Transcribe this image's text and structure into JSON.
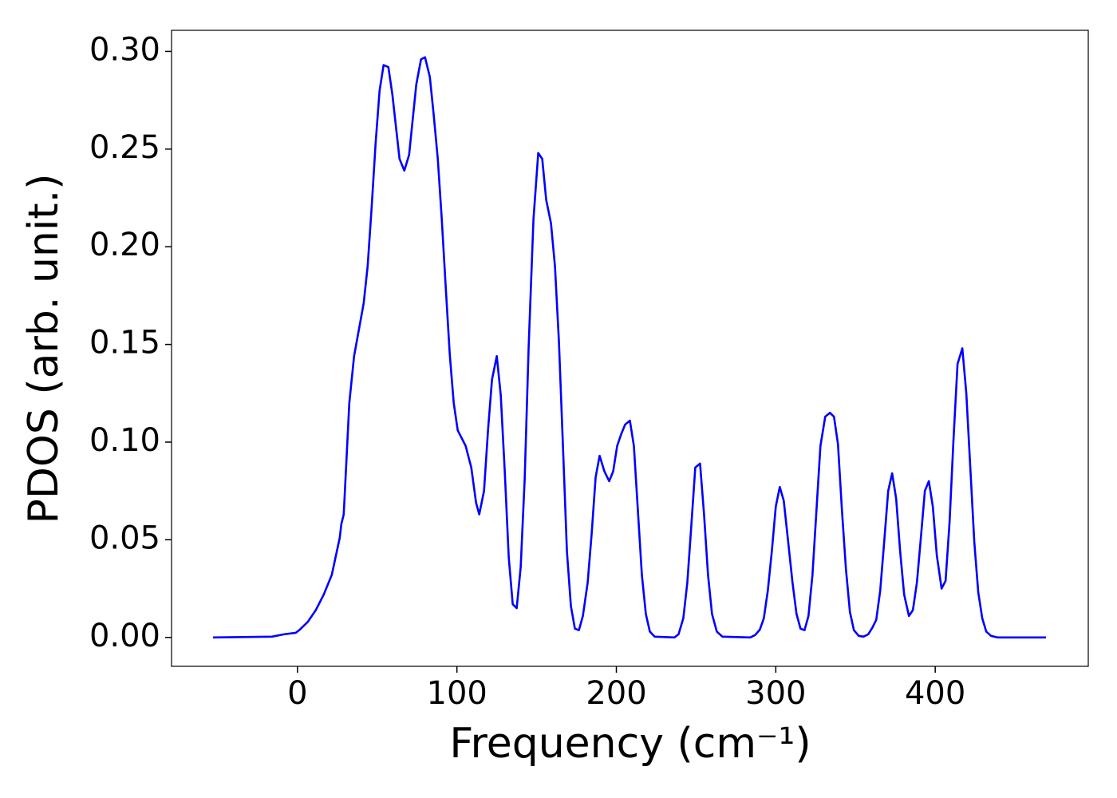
{
  "chart_data": {
    "type": "line",
    "xlabel": "Frequency (cm⁻¹)",
    "ylabel": "PDOS (arb. unit.)",
    "x": [
      -53,
      -16,
      -8.5,
      -1,
      1.5,
      6.5,
      11.5,
      16.5,
      21.5,
      26.5,
      27.5,
      29,
      32.5,
      35.5,
      41.5,
      44,
      46.5,
      49,
      51.5,
      54,
      57,
      59.5,
      64,
      67,
      70,
      74.5,
      77.5,
      80,
      83,
      85.5,
      88,
      90.5,
      93,
      95.5,
      98,
      100.5,
      105.5,
      109,
      112,
      114,
      117,
      119.5,
      122,
      125,
      127.5,
      130,
      132.5,
      135,
      137.5,
      140,
      142.5,
      145,
      148,
      151,
      153.5,
      156,
      159,
      161.5,
      164,
      166.5,
      169,
      171.5,
      174,
      176.5,
      179,
      182,
      184.5,
      187,
      189.5,
      192.5,
      195.5,
      198,
      200.5,
      203,
      205.5,
      208.5,
      211,
      213.5,
      216,
      218.5,
      221,
      224,
      236.5,
      239,
      242,
      244.5,
      247,
      249.5,
      252.5,
      255,
      257.5,
      260,
      263,
      266.5,
      284,
      287,
      290,
      292.5,
      295,
      297.5,
      300,
      302.5,
      305,
      307.5,
      310.5,
      313,
      315.5,
      318,
      320.5,
      323,
      325.5,
      328,
      331,
      334,
      336.5,
      339,
      341.5,
      344,
      346.5,
      349,
      352,
      355,
      358,
      360.5,
      363,
      365.5,
      368,
      370.5,
      373,
      375.5,
      378,
      380.5,
      383.5,
      386,
      388.5,
      391,
      393.5,
      396,
      398.5,
      401,
      404,
      406.5,
      409,
      411.5,
      414,
      417,
      419.5,
      422,
      424.5,
      427,
      429.5,
      432,
      435,
      439,
      469.5
    ],
    "series": [
      {
        "name": "PDOS",
        "color": "#0000ff",
        "values": [
          0,
          0.0004,
          0.0016,
          0.0024,
          0.004,
          0.008,
          0.014,
          0.022,
          0.032,
          0.051,
          0.058,
          0.063,
          0.12,
          0.144,
          0.171,
          0.19,
          0.22,
          0.253,
          0.28,
          0.293,
          0.292,
          0.278,
          0.245,
          0.239,
          0.247,
          0.283,
          0.296,
          0.297,
          0.287,
          0.267,
          0.245,
          0.214,
          0.179,
          0.145,
          0.12,
          0.106,
          0.098,
          0.087,
          0.069,
          0.063,
          0.075,
          0.106,
          0.132,
          0.144,
          0.124,
          0.085,
          0.041,
          0.017,
          0.015,
          0.036,
          0.081,
          0.149,
          0.214,
          0.248,
          0.245,
          0.224,
          0.212,
          0.19,
          0.151,
          0.098,
          0.044,
          0.016,
          0.0045,
          0.0037,
          0.011,
          0.028,
          0.053,
          0.082,
          0.093,
          0.085,
          0.08,
          0.085,
          0.098,
          0.104,
          0.109,
          0.111,
          0.098,
          0.065,
          0.032,
          0.012,
          0.003,
          0.0004,
          0,
          0.0016,
          0.0098,
          0.028,
          0.057,
          0.087,
          0.089,
          0.063,
          0.032,
          0.012,
          0.003,
          0.0004,
          0,
          0.0012,
          0.004,
          0.0098,
          0.024,
          0.044,
          0.067,
          0.077,
          0.07,
          0.051,
          0.028,
          0.012,
          0.0045,
          0.0037,
          0.011,
          0.032,
          0.065,
          0.098,
          0.113,
          0.115,
          0.113,
          0.099,
          0.065,
          0.035,
          0.013,
          0.0037,
          0.0008,
          0.0004,
          0.0016,
          0.0049,
          0.009,
          0.024,
          0.049,
          0.075,
          0.084,
          0.071,
          0.044,
          0.022,
          0.011,
          0.014,
          0.028,
          0.051,
          0.075,
          0.08,
          0.067,
          0.042,
          0.025,
          0.029,
          0.059,
          0.102,
          0.14,
          0.148,
          0.125,
          0.087,
          0.049,
          0.023,
          0.0098,
          0.003,
          0.0008,
          0,
          0
        ]
      }
    ],
    "xlim": [
      -79,
      496
    ],
    "ylim": [
      -0.0148,
      0.3108
    ],
    "xticks": [
      0,
      100,
      200,
      300,
      400
    ],
    "yticks": [
      {
        "value": 0,
        "label": "0.00"
      },
      {
        "value": 0.05,
        "label": "0.05"
      },
      {
        "value": 0.1,
        "label": "0.10"
      },
      {
        "value": 0.15,
        "label": "0.15"
      },
      {
        "value": 0.2,
        "label": "0.20"
      },
      {
        "value": 0.25,
        "label": "0.25"
      },
      {
        "value": 0.3,
        "label": "0.30"
      }
    ],
    "grid": false
  }
}
